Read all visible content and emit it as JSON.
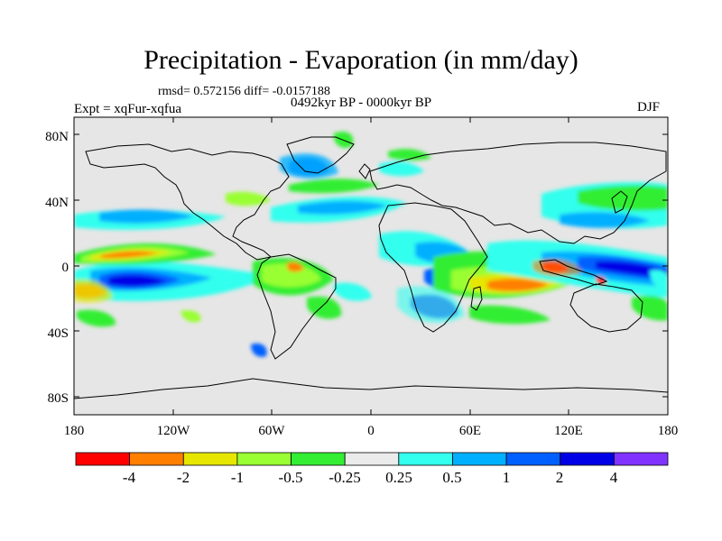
{
  "title": "Precipitation - Evaporation (in mm/day)",
  "stats_line": "rmsd= 0.572156 diff= -0.0157188",
  "period": "0492kyr BP - 0000kyr BP",
  "experiment": "Expt = xqFur-xqfua",
  "season": "DJF",
  "colors": {
    "background": "#e6e6e6",
    "coast": "#000000",
    "palette": [
      "#ff0000",
      "#ff8000",
      "#e6e600",
      "#99ff33",
      "#33ee33",
      "#ebebeb",
      "#33ffee",
      "#00b0ff",
      "#0060ff",
      "#0000e6",
      "#8033ff"
    ]
  },
  "map": {
    "lat_ticks": [
      "80N",
      "40N",
      "0",
      "40S",
      "80S"
    ],
    "lon_ticks": [
      "180",
      "120W",
      "60W",
      "0",
      "60E",
      "120E",
      "180"
    ]
  },
  "colorbar": {
    "labels": [
      "-4",
      "-2",
      "-1",
      "-0.5",
      "-0.25",
      "0.25",
      "0.5",
      "1",
      "2",
      "4"
    ]
  }
}
